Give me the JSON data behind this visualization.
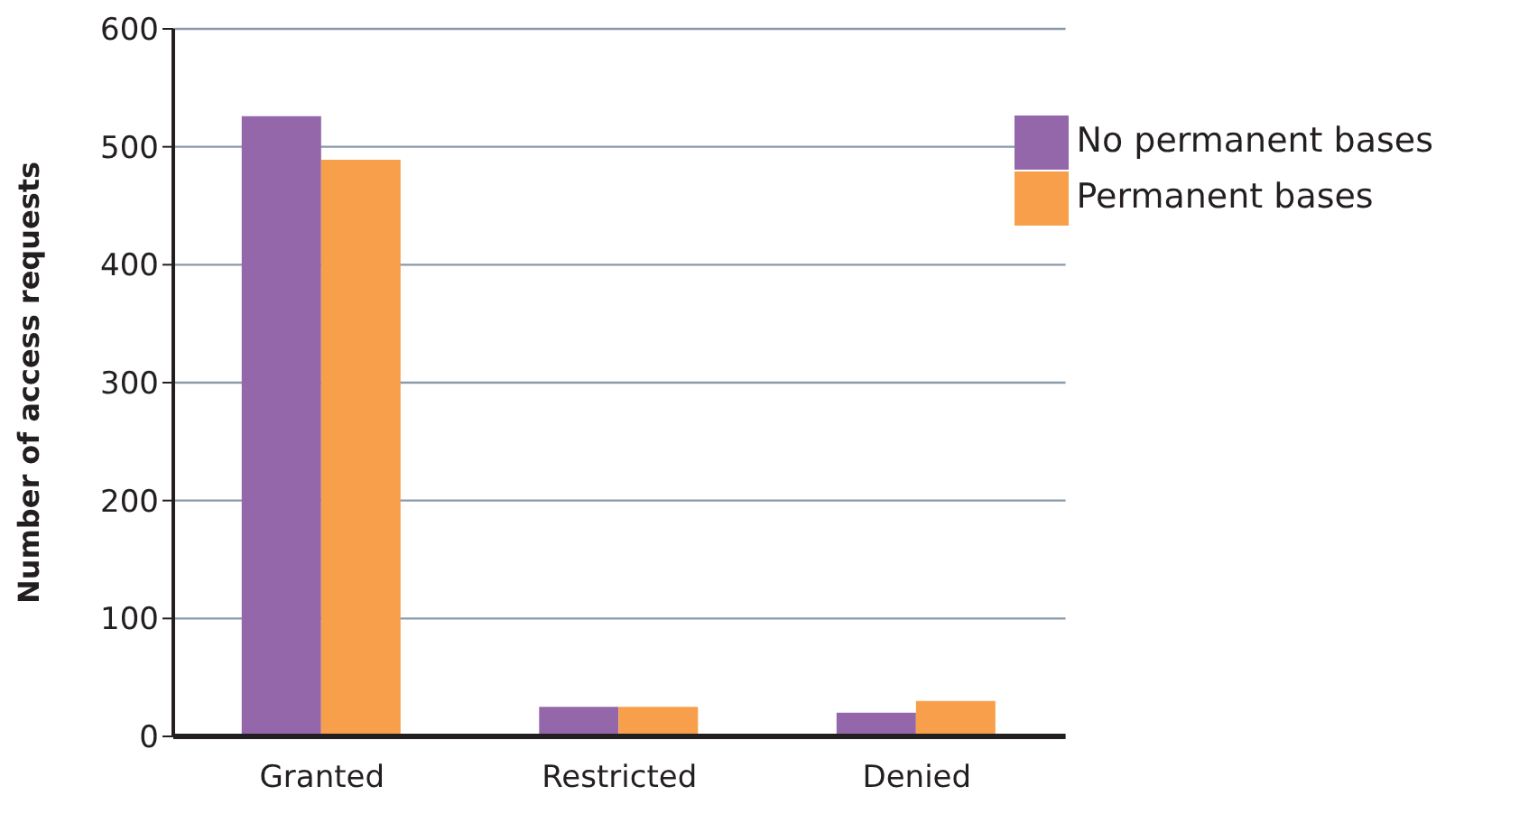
{
  "chart_data": {
    "type": "bar",
    "ylabel": "Number of access requests",
    "categories": [
      "Granted",
      "Restricted",
      "Denied"
    ],
    "series": [
      {
        "name": "No permanent bases",
        "color": "#9467ab",
        "values": [
          526,
          25,
          20
        ]
      },
      {
        "name": "Permanent bases",
        "color": "#f79f4b",
        "values": [
          489,
          25,
          30
        ]
      }
    ],
    "ylim": [
      0,
      600
    ],
    "yticks": [
      0,
      100,
      200,
      300,
      400,
      500,
      600
    ],
    "grid": "y",
    "legend": "top right"
  }
}
